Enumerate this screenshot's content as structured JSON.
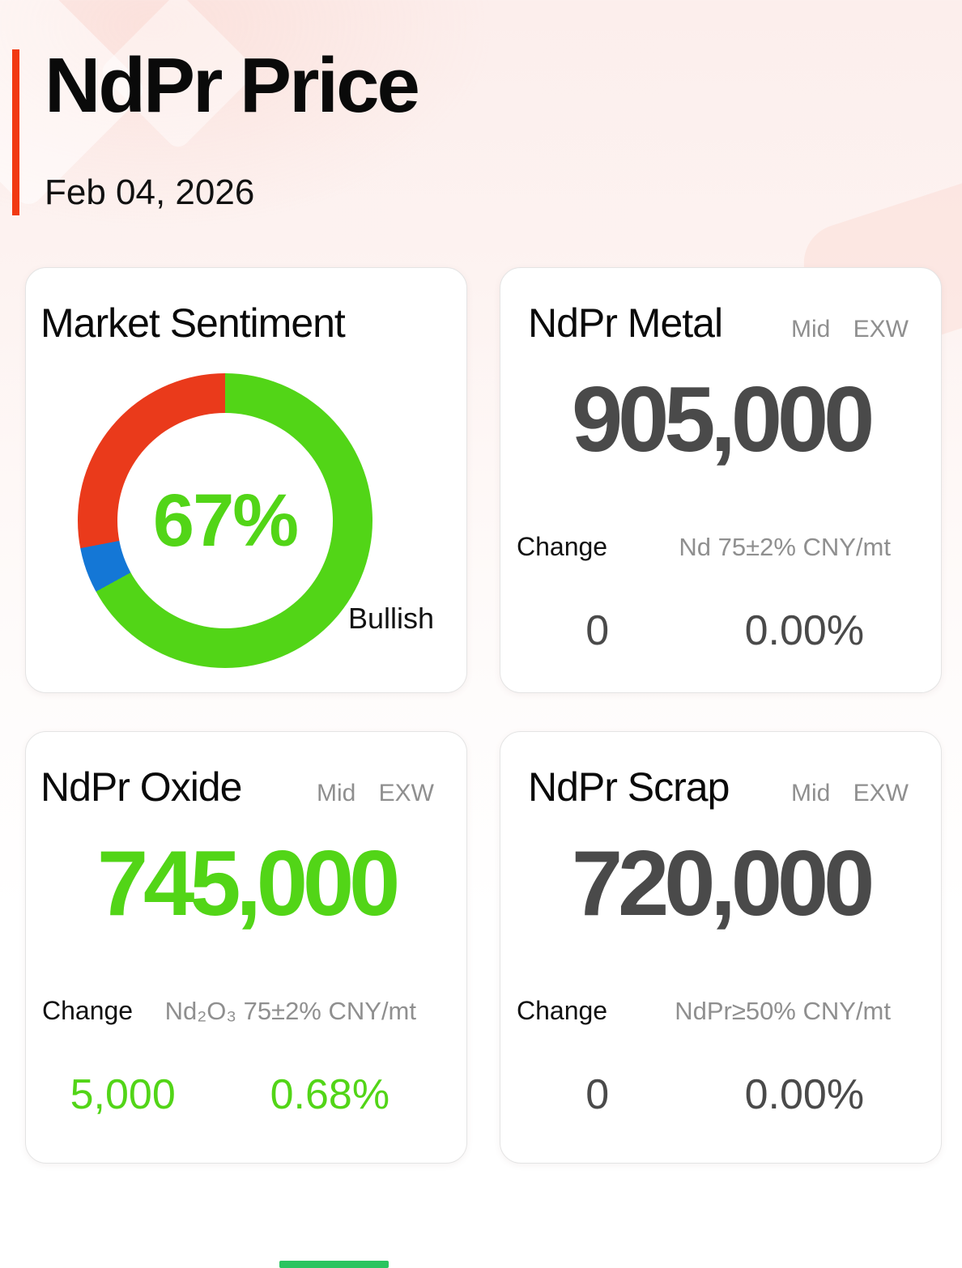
{
  "header": {
    "title": "NdPr Price",
    "date": "Feb 04, 2026"
  },
  "sentiment": {
    "title": "Market Sentiment",
    "center_label": "67%",
    "annotation": "Bullish",
    "chart_data": {
      "type": "pie",
      "donut": true,
      "start_angle_deg": 0,
      "direction": "clockwise",
      "title": "Market Sentiment",
      "segments": [
        {
          "label": "Bullish",
          "value_pct": 67,
          "color": "#52d517"
        },
        {
          "label": "",
          "value_pct": 5,
          "color": "#1477d6"
        },
        {
          "label": "",
          "value_pct": 28,
          "color": "#ea3a1b"
        }
      ],
      "center_label": "67%",
      "annotation": "Bullish"
    }
  },
  "cards": {
    "metal": {
      "title": "NdPr Metal",
      "tag_mid": "Mid",
      "tag_exw": "EXW",
      "price": "905,000",
      "change_label": "Change",
      "spec": "Nd 75±2% CNY/mt",
      "change_value": "0",
      "change_pct": "0.00%"
    },
    "oxide": {
      "title": "NdPr Oxide",
      "tag_mid": "Mid",
      "tag_exw": "EXW",
      "price": "745,000",
      "change_label": "Change",
      "spec": "Nd₂O₃ 75±2% CNY/mt",
      "change_value": "5,000",
      "change_pct": "0.68%"
    },
    "scrap": {
      "title": "NdPr Scrap",
      "tag_mid": "Mid",
      "tag_exw": "EXW",
      "price": "720,000",
      "change_label": "Change",
      "spec": "NdPr≥50% CNY/mt",
      "change_value": "0",
      "change_pct": "0.00%"
    }
  },
  "colors": {
    "accent_red": "#f13912",
    "positive_green": "#52d517",
    "donut_red": "#ea3a1b",
    "donut_blue": "#1477d6",
    "value_dark": "#4a4a4a",
    "label_gray": "#8f8f8f",
    "footer_green": "#2bc45f"
  }
}
